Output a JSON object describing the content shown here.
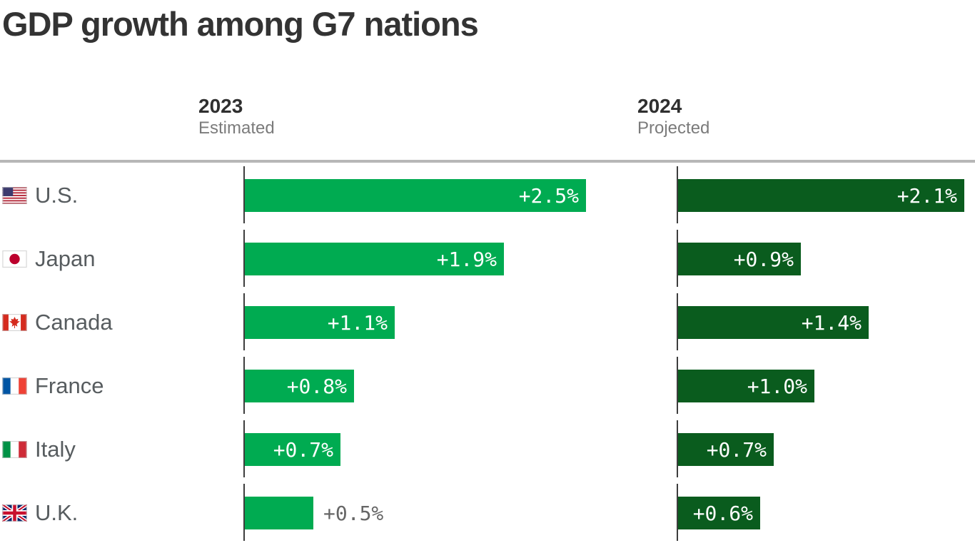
{
  "title": "GDP growth among G7 nations",
  "columns": [
    {
      "year": "2023",
      "subtitle": "Estimated"
    },
    {
      "year": "2024",
      "subtitle": "Projected"
    }
  ],
  "chart_data": {
    "type": "bar",
    "orientation": "horizontal",
    "value_unit": "percent",
    "xlim": [
      0,
      2.5
    ],
    "grid": false,
    "legend_position": "column-headers-top",
    "categories": [
      "U.S.",
      "Japan",
      "Canada",
      "France",
      "Italy",
      "U.K."
    ],
    "category_flag_icons": [
      "flag-us-icon",
      "flag-jp-icon",
      "flag-ca-icon",
      "flag-fr-icon",
      "flag-it-icon",
      "flag-gb-icon"
    ],
    "series": [
      {
        "name": "2023 Estimated",
        "color": "#00ab51",
        "values": [
          2.5,
          1.9,
          1.1,
          0.8,
          0.7,
          0.5
        ],
        "labels": [
          "+2.5%",
          "+1.9%",
          "+1.1%",
          "+0.8%",
          "+0.7%",
          "+0.5%"
        ]
      },
      {
        "name": "2024 Projected",
        "color": "#0a5c1e",
        "values": [
          2.1,
          0.9,
          1.4,
          1.0,
          0.7,
          0.6
        ],
        "labels": [
          "+2.1%",
          "+0.9%",
          "+1.4%",
          "+1.0%",
          "+0.7%",
          "+0.6%"
        ]
      }
    ]
  },
  "colors": {
    "light_green": "#00ab51",
    "dark_green": "#0a5c1e",
    "title_text": "#333333",
    "header_year_text": "#2f2f2f",
    "header_subtitle_text": "#7b7b7b",
    "country_text": "#575c5f",
    "bar_label_text": "#ffffff",
    "outside_label_text": "#666666",
    "top_rule": "#b7b7b7",
    "axis_tick": "#3d3d3d"
  }
}
